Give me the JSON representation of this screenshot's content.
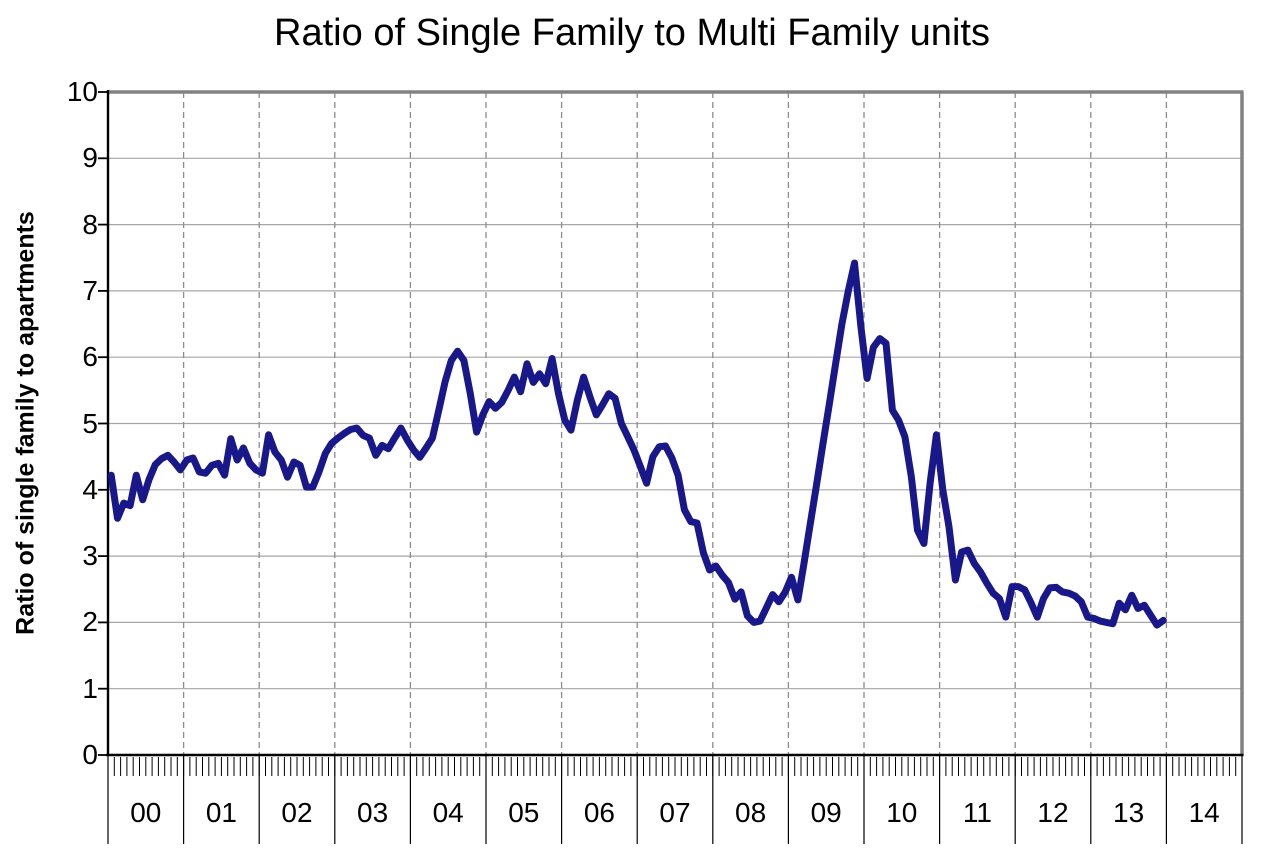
{
  "page": {
    "background": "#ffffff"
  },
  "chart_data": {
    "type": "line",
    "title": "Ratio of Single Family to Multi Family units",
    "ylabel": "Ratio of single family to apartments",
    "xlabel": "",
    "ylim": [
      0,
      10
    ],
    "y_ticks": [
      0,
      1,
      2,
      3,
      4,
      5,
      6,
      7,
      8,
      9,
      10
    ],
    "x_tick_labels": [
      "00",
      "01",
      "02",
      "03",
      "04",
      "05",
      "06",
      "07",
      "08",
      "09",
      "10",
      "11",
      "12",
      "13",
      "14"
    ],
    "months_per_year": 12,
    "grid": {
      "horizontal": "solid",
      "vertical": "dashed at year boundaries",
      "minor_x_ticks": "monthly comb below axis"
    },
    "legend_position": "none",
    "series": [
      {
        "name": "Ratio of single family to multi family units",
        "frequency": "monthly",
        "start": "2000-01",
        "end": "2013-12",
        "color": "#18188a",
        "values": [
          4.22,
          3.57,
          3.8,
          3.76,
          4.22,
          3.85,
          4.15,
          4.38,
          4.47,
          4.52,
          4.42,
          4.3,
          4.45,
          4.48,
          4.27,
          4.25,
          4.37,
          4.4,
          4.22,
          4.77,
          4.45,
          4.63,
          4.4,
          4.3,
          4.25,
          4.83,
          4.57,
          4.45,
          4.19,
          4.42,
          4.37,
          4.04,
          4.04,
          4.27,
          4.55,
          4.7,
          4.78,
          4.85,
          4.91,
          4.93,
          4.82,
          4.78,
          4.52,
          4.67,
          4.62,
          4.78,
          4.93,
          4.75,
          4.6,
          4.49,
          4.63,
          4.78,
          5.2,
          5.63,
          5.95,
          6.09,
          5.95,
          5.45,
          4.87,
          5.13,
          5.33,
          5.23,
          5.32,
          5.5,
          5.7,
          5.48,
          5.9,
          5.62,
          5.75,
          5.6,
          5.98,
          5.45,
          5.05,
          4.9,
          5.35,
          5.7,
          5.4,
          5.13,
          5.28,
          5.45,
          5.38,
          5.0,
          4.8,
          4.6,
          4.35,
          4.1,
          4.5,
          4.65,
          4.66,
          4.48,
          4.22,
          3.7,
          3.52,
          3.5,
          3.05,
          2.79,
          2.85,
          2.71,
          2.6,
          2.35,
          2.46,
          2.1,
          2.0,
          2.02,
          2.22,
          2.42,
          2.31,
          2.46,
          2.68,
          2.34,
          2.9,
          3.5,
          4.1,
          4.7,
          5.3,
          5.9,
          6.5,
          7.0,
          7.42,
          6.46,
          5.68,
          6.15,
          6.28,
          6.21,
          5.2,
          5.05,
          4.8,
          4.2,
          3.39,
          3.19,
          4.1,
          4.83,
          4.0,
          3.44,
          2.64,
          3.06,
          3.09,
          2.89,
          2.76,
          2.59,
          2.44,
          2.36,
          2.08,
          2.54,
          2.54,
          2.49,
          2.3,
          2.08,
          2.36,
          2.52,
          2.53,
          2.46,
          2.44,
          2.4,
          2.31,
          2.08,
          2.06,
          2.02,
          2.0,
          1.98,
          2.29,
          2.19,
          2.41,
          2.21,
          2.26,
          2.11,
          1.96,
          2.03
        ]
      }
    ]
  },
  "colors": {
    "line": "#18188a",
    "grid_solid": "#a6a6a6",
    "grid_dashed": "#8c8c8c",
    "plot_border": "#828282",
    "axis": "#000000",
    "text": "#000000"
  }
}
